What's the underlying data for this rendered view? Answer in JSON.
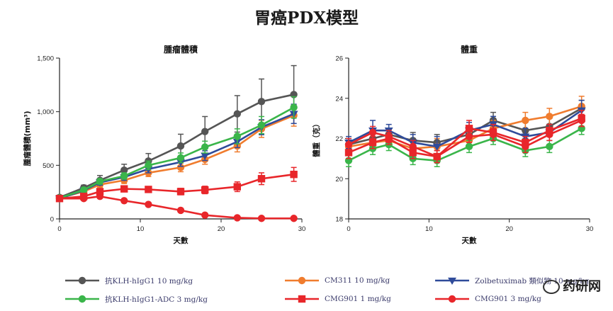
{
  "page": {
    "title": "胃癌PDX模型"
  },
  "chart_data": [
    {
      "type": "line",
      "title": "腫瘤體積",
      "xlabel": "天數",
      "ylabel": "腫瘤體積(mm³)",
      "xlim": [
        0,
        30
      ],
      "ylim": [
        0,
        1500
      ],
      "xticks": [
        0,
        10,
        20,
        30
      ],
      "yticks": [
        0,
        500,
        1000,
        1500
      ],
      "ytick_labels": [
        "0",
        "500",
        "1,000",
        "1,500"
      ],
      "x": [
        0,
        3,
        5,
        8,
        11,
        15,
        18,
        22,
        25,
        29
      ],
      "series": [
        {
          "name": "抗KLH-hIgG1 10 mg/kg",
          "color": "#555555",
          "marker": "circle",
          "values": [
            200,
            290,
            360,
            455,
            540,
            680,
            815,
            980,
            1095,
            1160
          ],
          "errors": [
            15,
            25,
            45,
            55,
            70,
            110,
            140,
            170,
            210,
            270
          ]
        },
        {
          "name": "CM311 10 mg/kg",
          "color": "#f07c2e",
          "marker": "circle",
          "values": [
            195,
            255,
            320,
            360,
            430,
            480,
            555,
            680,
            840,
            965
          ],
          "errors": [
            12,
            20,
            25,
            30,
            35,
            40,
            45,
            55,
            80,
            100
          ]
        },
        {
          "name": "Zolbetuximab 類似物 10 mg/kg",
          "color": "#2f4b9a",
          "marker": "triangle-down",
          "values": [
            190,
            265,
            340,
            390,
            465,
            530,
            590,
            720,
            855,
            980
          ],
          "errors": [
            12,
            20,
            25,
            30,
            35,
            40,
            45,
            55,
            70,
            90
          ]
        },
        {
          "name": "抗KLH-hIgG1-ADC 3 mg/kg",
          "color": "#3ab54a",
          "marker": "circle",
          "values": [
            195,
            270,
            350,
            400,
            500,
            570,
            670,
            770,
            875,
            1040
          ],
          "errors": [
            12,
            20,
            25,
            30,
            40,
            45,
            55,
            70,
            80,
            100
          ]
        },
        {
          "name": "CMG901 1 mg/kg",
          "color": "#e8262a",
          "marker": "square",
          "values": [
            190,
            210,
            255,
            280,
            275,
            255,
            270,
            300,
            375,
            415
          ],
          "errors": [
            10,
            15,
            20,
            25,
            25,
            30,
            35,
            45,
            55,
            65
          ]
        },
        {
          "name": "CMG901 3 mg/kg",
          "color": "#e8262a",
          "marker": "circle",
          "values": [
            190,
            190,
            210,
            170,
            135,
            80,
            35,
            10,
            5,
            5
          ],
          "errors": [
            10,
            12,
            15,
            12,
            10,
            8,
            6,
            4,
            3,
            2
          ]
        }
      ]
    },
    {
      "type": "line",
      "title": "體重",
      "xlabel": "天數",
      "ylabel": "體重（克）",
      "xlim": [
        0,
        30
      ],
      "ylim": [
        18,
        26
      ],
      "xticks": [
        0,
        10,
        20,
        30
      ],
      "yticks": [
        18,
        20,
        22,
        24,
        26
      ],
      "ytick_labels": [
        "18",
        "20",
        "22",
        "24",
        "26"
      ],
      "x": [
        0,
        3,
        5,
        8,
        11,
        15,
        18,
        22,
        25,
        29
      ],
      "series": [
        {
          "name": "抗KLH-hIgG1 10 mg/kg",
          "color": "#555555",
          "marker": "circle",
          "values": [
            21.7,
            22.0,
            22.2,
            21.9,
            21.8,
            22.2,
            22.9,
            22.4,
            22.6,
            23.5
          ],
          "errors": [
            0.3,
            0.3,
            0.3,
            0.4,
            0.4,
            0.4,
            0.4,
            0.4,
            0.4,
            0.4
          ]
        },
        {
          "name": "CM311 10 mg/kg",
          "color": "#f07c2e",
          "marker": "circle",
          "values": [
            21.6,
            21.8,
            21.9,
            21.5,
            21.6,
            21.9,
            22.5,
            22.9,
            23.1,
            23.6
          ],
          "errors": [
            0.3,
            0.3,
            0.3,
            0.4,
            0.4,
            0.4,
            0.4,
            0.4,
            0.4,
            0.5
          ]
        },
        {
          "name": "Zolbetuximab 類似物 10 mg/kg",
          "color": "#2f4b9a",
          "marker": "triangle-down",
          "values": [
            21.8,
            22.4,
            22.4,
            21.8,
            21.6,
            22.4,
            22.7,
            22.1,
            22.3,
            23.4
          ],
          "errors": [
            0.3,
            0.5,
            0.3,
            0.4,
            0.5,
            0.4,
            0.4,
            0.4,
            0.4,
            0.5
          ]
        },
        {
          "name": "抗KLH-hIgG1-ADC 3 mg/kg",
          "color": "#3ab54a",
          "marker": "circle",
          "values": [
            20.9,
            21.5,
            21.7,
            21.0,
            20.9,
            21.6,
            22.0,
            21.4,
            21.6,
            22.5
          ],
          "errors": [
            0.3,
            0.3,
            0.3,
            0.3,
            0.3,
            0.3,
            0.3,
            0.3,
            0.3,
            0.3
          ]
        },
        {
          "name": "CMG901 1 mg/kg",
          "color": "#e8262a",
          "marker": "square",
          "values": [
            21.3,
            21.8,
            22.0,
            21.3,
            21.1,
            22.5,
            22.3,
            21.8,
            22.4,
            23.0
          ],
          "errors": [
            0.3,
            0.3,
            0.3,
            0.3,
            0.3,
            0.4,
            0.4,
            0.3,
            0.3,
            0.4
          ]
        },
        {
          "name": "CMG901 3 mg/kg",
          "color": "#e8262a",
          "marker": "circle",
          "values": [
            21.7,
            22.3,
            22.1,
            21.6,
            21.1,
            22.1,
            22.2,
            21.6,
            22.2,
            22.9
          ],
          "errors": [
            0.3,
            0.3,
            0.3,
            0.3,
            0.3,
            0.3,
            0.3,
            0.3,
            0.3,
            0.3
          ]
        }
      ]
    }
  ],
  "legend": {
    "items": [
      {
        "label": "抗KLH-hIgG1 10 mg/kg",
        "color": "#555555",
        "marker": "circle"
      },
      {
        "label": "CM311 10 mg/kg",
        "color": "#f07c2e",
        "marker": "circle"
      },
      {
        "label": "Zolbetuximab 類似物 10 mg/kg",
        "color": "#2f4b9a",
        "marker": "triangle-down"
      },
      {
        "label": "抗KLH-hIgG1-ADC 3 mg/kg",
        "color": "#3ab54a",
        "marker": "circle"
      },
      {
        "label": "CMG901 1 mg/kg",
        "color": "#e8262a",
        "marker": "square"
      },
      {
        "label": "CMG901 3 mg/kg",
        "color": "#e8262a",
        "marker": "circle"
      }
    ]
  },
  "watermark": {
    "text": "药研网"
  }
}
